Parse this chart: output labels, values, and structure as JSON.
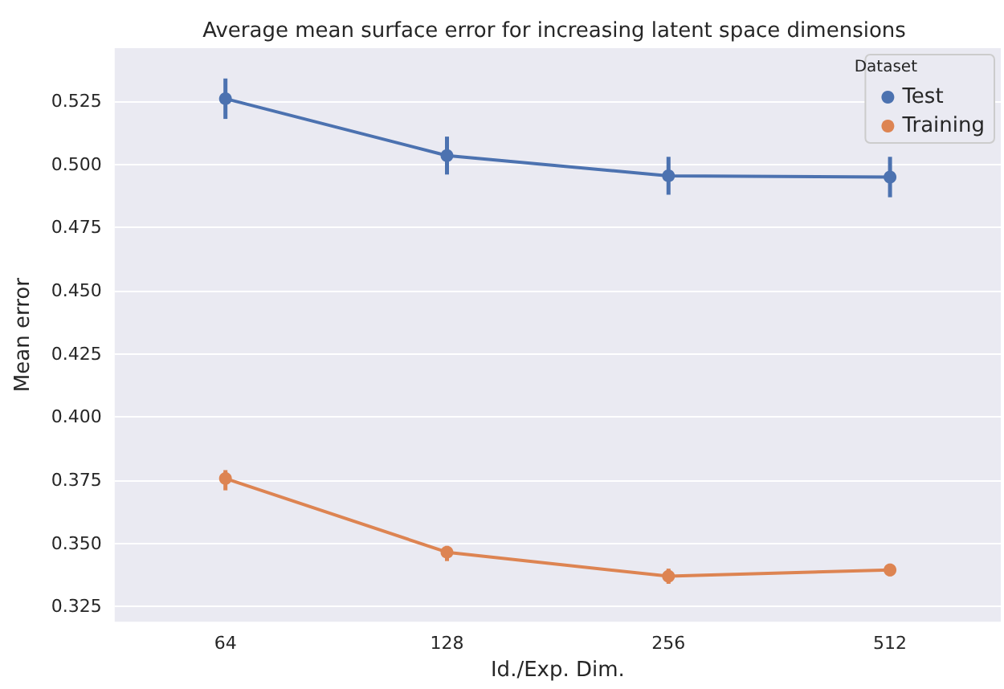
{
  "chart_data": {
    "type": "line",
    "title": "Average mean surface error for increasing latent space dimensions",
    "xlabel": "Id./Exp. Dim.",
    "ylabel": "Mean error",
    "legend_title": "Dataset",
    "categories": [
      "64",
      "128",
      "256",
      "512"
    ],
    "series": [
      {
        "name": "Test",
        "color": "#4c72b0",
        "values": [
          0.526,
          0.5035,
          0.4955,
          0.495
        ],
        "errors": [
          [
            0.518,
            0.534
          ],
          [
            0.496,
            0.511
          ],
          [
            0.488,
            0.503
          ],
          [
            0.487,
            0.503
          ]
        ]
      },
      {
        "name": "Training",
        "color": "#dd8452",
        "values": [
          0.3757,
          0.3465,
          0.337,
          0.3395
        ],
        "errors": [
          [
            0.371,
            0.379
          ],
          [
            0.343,
            0.349
          ],
          [
            0.334,
            0.34
          ],
          [
            0.337,
            0.342
          ]
        ]
      }
    ],
    "ylim": [
      0.319,
      0.546
    ],
    "yticks": [
      0.325,
      {
        "value": 0.35,
        "label": "0.350"
      },
      0.375,
      {
        "value": 0.4,
        "label": "0.400"
      },
      0.425,
      {
        "value": 0.45,
        "label": "0.450"
      },
      0.475,
      {
        "value": 0.5,
        "label": "0.500"
      },
      0.525
    ],
    "grid": "y",
    "legend": "top right",
    "marker": "circle",
    "line_style": "solid"
  }
}
